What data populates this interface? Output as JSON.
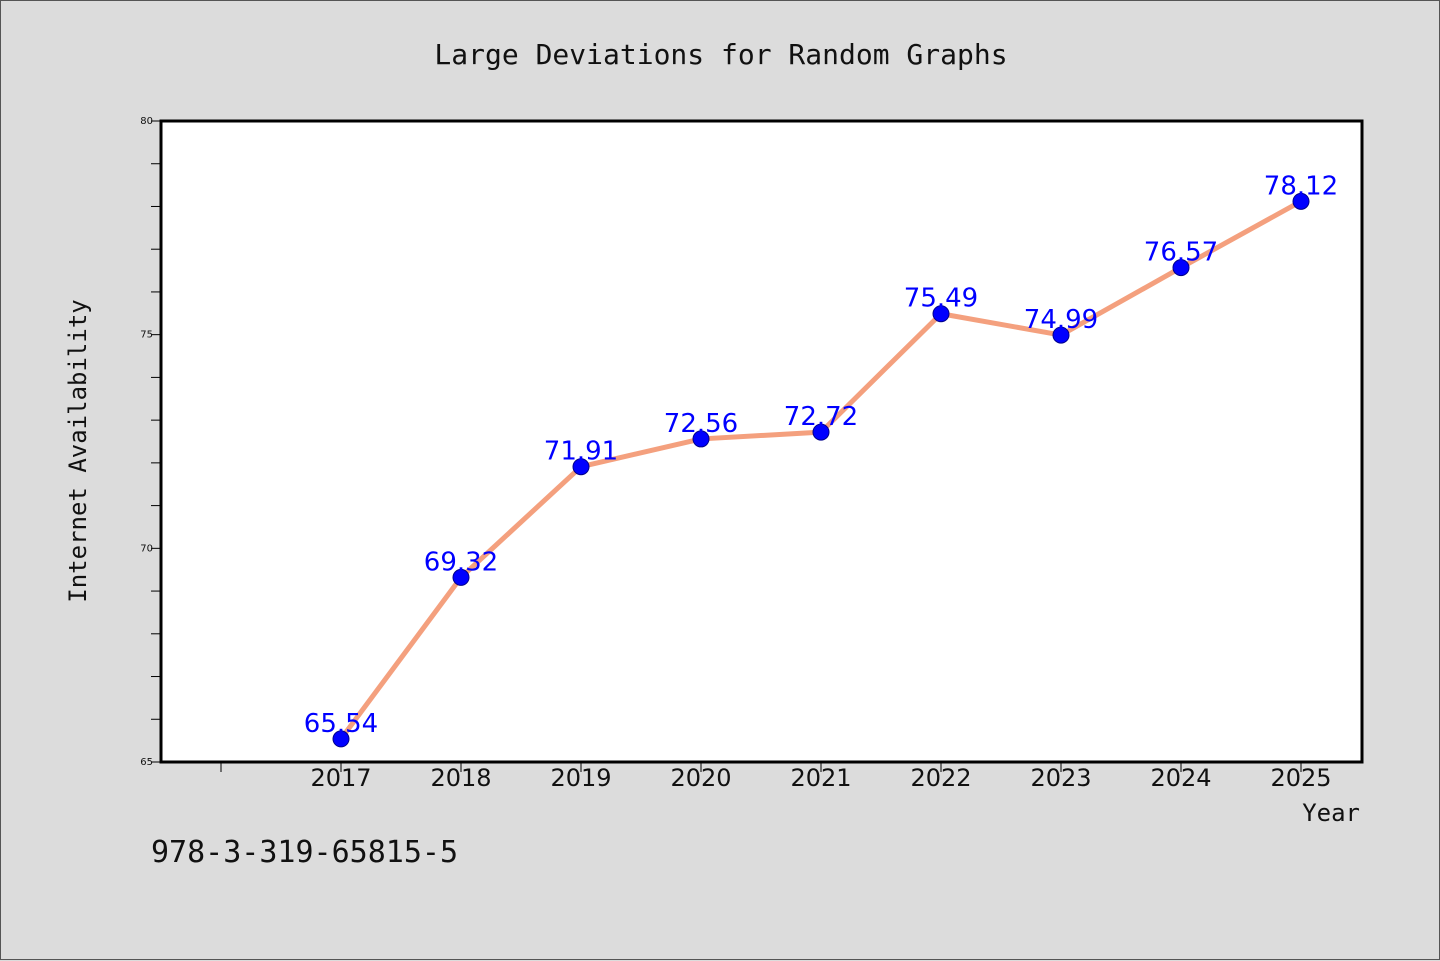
{
  "chart_data": {
    "type": "line",
    "title": "Large Deviations for Random Graphs",
    "xlabel": "Year",
    "ylabel": "Internet Availability",
    "categories": [
      "2017",
      "2018",
      "2019",
      "2020",
      "2021",
      "2022",
      "2023",
      "2024",
      "2025"
    ],
    "series": [
      {
        "values": [
          65.54,
          69.32,
          71.91,
          72.56,
          72.72,
          75.49,
          74.99,
          76.57,
          78.12
        ],
        "data_labels": [
          "65.54",
          "69.32",
          "71.91",
          "72.56",
          "72.72",
          "75.49",
          "74.99",
          "76.57",
          "78.12"
        ],
        "line_color": "#f4a07e",
        "marker_color": "#0000ff",
        "label_color": "#0000ff"
      }
    ],
    "ylim": [
      65,
      80
    ],
    "yticks": [
      65,
      70,
      75,
      80
    ],
    "grid": false,
    "legend": "none"
  },
  "footer": {
    "isbn": "978-3-319-65815-5"
  }
}
